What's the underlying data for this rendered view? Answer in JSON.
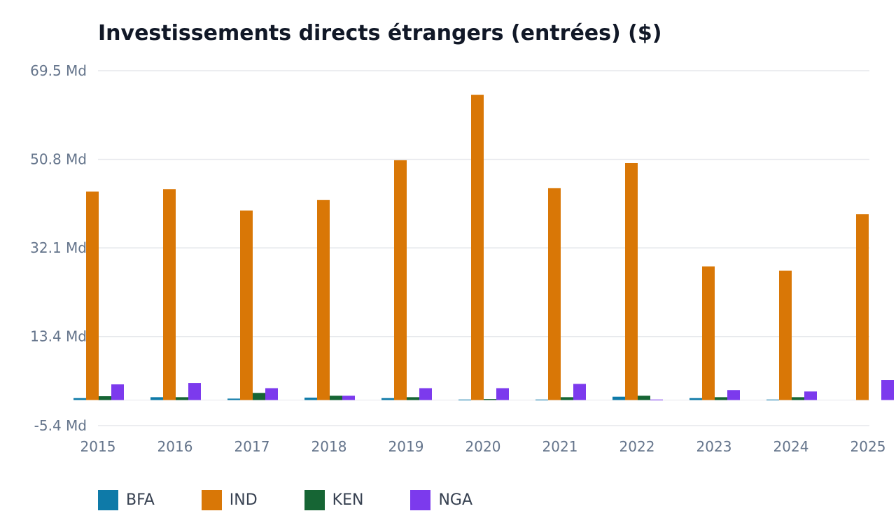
{
  "chart_data": {
    "type": "bar",
    "title": "Investissements directs étrangers (entrées) ($)",
    "xlabel": "",
    "ylabel": "",
    "ylim": [
      -5.4,
      69.5
    ],
    "y_ticks": [
      {
        "value": 69.5,
        "label": "69.5 Md"
      },
      {
        "value": 50.8,
        "label": "50.8 Md"
      },
      {
        "value": 32.1,
        "label": "32.1 Md"
      },
      {
        "value": 13.4,
        "label": "13.4 Md"
      },
      {
        "value": -5.4,
        "label": "-5.4 Md"
      }
    ],
    "grid": true,
    "legend_position": "bottom-left",
    "categories": [
      "2015",
      "2016",
      "2017",
      "2018",
      "2019",
      "2020",
      "2021",
      "2022",
      "2023",
      "2024",
      "2025"
    ],
    "series": [
      {
        "name": "BFA",
        "color": "#0e7aa8",
        "values": [
          0.4,
          0.6,
          0.3,
          0.5,
          0.4,
          0.1,
          0.1,
          0.7,
          0.4,
          0.1,
          null
        ]
      },
      {
        "name": "IND",
        "color": "#d97706",
        "values": [
          44.0,
          44.5,
          40.0,
          42.2,
          50.6,
          64.4,
          44.7,
          50.0,
          28.2,
          27.3,
          39.2
        ]
      },
      {
        "name": "KEN",
        "color": "#166534",
        "values": [
          0.8,
          0.6,
          1.5,
          0.9,
          0.6,
          0.2,
          0.6,
          0.9,
          0.6,
          0.6,
          null
        ]
      },
      {
        "name": "NGA",
        "color": "#7c3aed",
        "values": [
          3.3,
          3.6,
          2.5,
          0.9,
          2.5,
          2.5,
          3.4,
          0.1,
          2.1,
          1.8,
          4.2
        ]
      }
    ]
  }
}
